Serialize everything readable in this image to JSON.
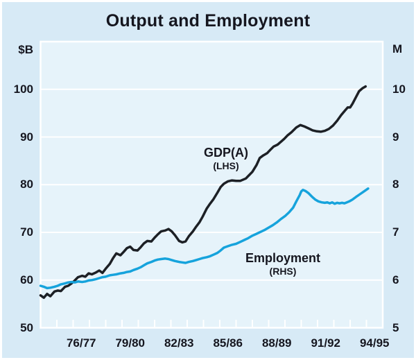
{
  "chart_data": {
    "type": "line",
    "title": "Output and Employment",
    "left_axis": {
      "label": "$B",
      "ticks": [
        50,
        60,
        70,
        80,
        90,
        100
      ],
      "range": [
        50,
        110
      ]
    },
    "right_axis": {
      "label": "M",
      "ticks": [
        5,
        6,
        7,
        8,
        9,
        10
      ],
      "range": [
        5,
        11
      ]
    },
    "x_axis": {
      "years_span": 21,
      "tick_count": 20,
      "labels": [
        "76/77",
        "79/80",
        "82/83",
        "85/86",
        "88/89",
        "91/92",
        "94/95"
      ],
      "label_year_indices": [
        2,
        5,
        8,
        11,
        14,
        17,
        20
      ],
      "grid": false
    },
    "annotations": [
      {
        "text": "GDP(A)",
        "sub": "(LHS)"
      },
      {
        "text": "Employment",
        "sub": "(RHS)"
      }
    ],
    "series": [
      {
        "name": "GDP(A)",
        "axis": "left",
        "color": "#1d2025",
        "points": [
          [
            0,
            56.8
          ],
          [
            0.2,
            56.3
          ],
          [
            0.4,
            57.1
          ],
          [
            0.6,
            56.6
          ],
          [
            0.85,
            57.6
          ],
          [
            1.05,
            57.8
          ],
          [
            1.25,
            57.7
          ],
          [
            1.5,
            58.6
          ],
          [
            1.7,
            58.8
          ],
          [
            1.9,
            59.3
          ],
          [
            2.1,
            59.9
          ],
          [
            2.3,
            60.6
          ],
          [
            2.55,
            60.9
          ],
          [
            2.75,
            60.7
          ],
          [
            2.95,
            61.4
          ],
          [
            3.15,
            61.2
          ],
          [
            3.4,
            61.6
          ],
          [
            3.6,
            62.0
          ],
          [
            3.8,
            61.5
          ],
          [
            4.0,
            62.4
          ],
          [
            4.25,
            63.4
          ],
          [
            4.45,
            64.6
          ],
          [
            4.65,
            65.6
          ],
          [
            4.9,
            65.2
          ],
          [
            5.1,
            65.9
          ],
          [
            5.3,
            66.7
          ],
          [
            5.5,
            67.0
          ],
          [
            5.7,
            66.3
          ],
          [
            5.95,
            66.2
          ],
          [
            6.15,
            66.9
          ],
          [
            6.35,
            67.7
          ],
          [
            6.55,
            68.2
          ],
          [
            6.8,
            68.1
          ],
          [
            7.0,
            68.9
          ],
          [
            7.2,
            69.6
          ],
          [
            7.4,
            70.2
          ],
          [
            7.65,
            70.4
          ],
          [
            7.85,
            70.7
          ],
          [
            8.05,
            70.2
          ],
          [
            8.25,
            69.4
          ],
          [
            8.5,
            68.2
          ],
          [
            8.7,
            67.9
          ],
          [
            8.9,
            68.1
          ],
          [
            9.1,
            69.2
          ],
          [
            9.35,
            70.2
          ],
          [
            9.55,
            71.2
          ],
          [
            9.75,
            72.1
          ],
          [
            9.95,
            73.3
          ],
          [
            10.2,
            75.0
          ],
          [
            10.4,
            76.0
          ],
          [
            10.6,
            76.9
          ],
          [
            10.85,
            78.3
          ],
          [
            11.05,
            79.5
          ],
          [
            11.25,
            80.2
          ],
          [
            11.5,
            80.7
          ],
          [
            11.75,
            80.9
          ],
          [
            12.0,
            80.8
          ],
          [
            12.25,
            80.8
          ],
          [
            12.6,
            81.3
          ],
          [
            12.8,
            82.0
          ],
          [
            13.0,
            82.7
          ],
          [
            13.25,
            84.1
          ],
          [
            13.45,
            85.6
          ],
          [
            13.65,
            86.1
          ],
          [
            13.9,
            86.6
          ],
          [
            14.1,
            87.3
          ],
          [
            14.3,
            88.0
          ],
          [
            14.55,
            88.4
          ],
          [
            14.75,
            89.0
          ],
          [
            14.95,
            89.6
          ],
          [
            15.15,
            90.3
          ],
          [
            15.4,
            91.0
          ],
          [
            15.7,
            92.0
          ],
          [
            15.95,
            92.5
          ],
          [
            16.2,
            92.2
          ],
          [
            16.45,
            91.8
          ],
          [
            16.7,
            91.4
          ],
          [
            16.95,
            91.2
          ],
          [
            17.2,
            91.1
          ],
          [
            17.45,
            91.3
          ],
          [
            17.7,
            91.7
          ],
          [
            17.95,
            92.4
          ],
          [
            18.2,
            93.4
          ],
          [
            18.45,
            94.6
          ],
          [
            18.7,
            95.6
          ],
          [
            18.85,
            96.2
          ],
          [
            19.0,
            96.2
          ],
          [
            19.15,
            97.0
          ],
          [
            19.35,
            98.3
          ],
          [
            19.55,
            99.6
          ],
          [
            19.75,
            100.2
          ],
          [
            19.95,
            100.6
          ]
        ]
      },
      {
        "name": "Employment",
        "axis": "right",
        "color": "#16a3dc",
        "points": [
          [
            0,
            5.88
          ],
          [
            0.2,
            5.86
          ],
          [
            0.4,
            5.83
          ],
          [
            0.6,
            5.84
          ],
          [
            0.85,
            5.86
          ],
          [
            1.05,
            5.88
          ],
          [
            1.25,
            5.91
          ],
          [
            1.5,
            5.93
          ],
          [
            1.7,
            5.95
          ],
          [
            1.9,
            5.96
          ],
          [
            2.1,
            5.95
          ],
          [
            2.3,
            5.97
          ],
          [
            2.55,
            5.96
          ],
          [
            2.75,
            5.97
          ],
          [
            2.95,
            5.99
          ],
          [
            3.15,
            6.0
          ],
          [
            3.4,
            6.02
          ],
          [
            3.6,
            6.04
          ],
          [
            3.8,
            6.06
          ],
          [
            4.0,
            6.07
          ],
          [
            4.25,
            6.1
          ],
          [
            4.45,
            6.11
          ],
          [
            4.65,
            6.12
          ],
          [
            4.9,
            6.14
          ],
          [
            5.1,
            6.15
          ],
          [
            5.3,
            6.17
          ],
          [
            5.5,
            6.18
          ],
          [
            5.7,
            6.21
          ],
          [
            5.95,
            6.24
          ],
          [
            6.15,
            6.27
          ],
          [
            6.35,
            6.31
          ],
          [
            6.55,
            6.35
          ],
          [
            6.8,
            6.38
          ],
          [
            7.0,
            6.41
          ],
          [
            7.2,
            6.43
          ],
          [
            7.4,
            6.44
          ],
          [
            7.65,
            6.45
          ],
          [
            7.85,
            6.44
          ],
          [
            8.05,
            6.42
          ],
          [
            8.25,
            6.4
          ],
          [
            8.5,
            6.38
          ],
          [
            8.7,
            6.37
          ],
          [
            8.9,
            6.36
          ],
          [
            9.1,
            6.38
          ],
          [
            9.35,
            6.4
          ],
          [
            9.55,
            6.42
          ],
          [
            9.75,
            6.44
          ],
          [
            9.95,
            6.46
          ],
          [
            10.2,
            6.48
          ],
          [
            10.4,
            6.5
          ],
          [
            10.6,
            6.53
          ],
          [
            10.85,
            6.57
          ],
          [
            11.05,
            6.62
          ],
          [
            11.25,
            6.68
          ],
          [
            11.5,
            6.71
          ],
          [
            11.75,
            6.74
          ],
          [
            12.0,
            6.76
          ],
          [
            12.25,
            6.8
          ],
          [
            12.5,
            6.84
          ],
          [
            12.75,
            6.88
          ],
          [
            13.0,
            6.93
          ],
          [
            13.25,
            6.97
          ],
          [
            13.5,
            7.01
          ],
          [
            13.75,
            7.05
          ],
          [
            14.0,
            7.1
          ],
          [
            14.25,
            7.15
          ],
          [
            14.5,
            7.21
          ],
          [
            14.75,
            7.28
          ],
          [
            15.0,
            7.34
          ],
          [
            15.25,
            7.42
          ],
          [
            15.5,
            7.52
          ],
          [
            15.7,
            7.65
          ],
          [
            15.9,
            7.78
          ],
          [
            16.0,
            7.86
          ],
          [
            16.1,
            7.89
          ],
          [
            16.25,
            7.87
          ],
          [
            16.45,
            7.82
          ],
          [
            16.65,
            7.75
          ],
          [
            16.85,
            7.69
          ],
          [
            17.05,
            7.65
          ],
          [
            17.25,
            7.63
          ],
          [
            17.45,
            7.62
          ],
          [
            17.6,
            7.63
          ],
          [
            17.75,
            7.61
          ],
          [
            17.9,
            7.63
          ],
          [
            18.05,
            7.6
          ],
          [
            18.2,
            7.62
          ],
          [
            18.35,
            7.61
          ],
          [
            18.5,
            7.62
          ],
          [
            18.65,
            7.61
          ],
          [
            18.8,
            7.63
          ],
          [
            18.95,
            7.65
          ],
          [
            19.15,
            7.69
          ],
          [
            19.35,
            7.74
          ],
          [
            19.6,
            7.8
          ],
          [
            19.85,
            7.86
          ],
          [
            20.1,
            7.92
          ]
        ]
      }
    ],
    "layout_hints": {
      "legend": "inline-annotations",
      "grid_horizontal": true,
      "grid_vertical": false
    }
  },
  "colors": {
    "background": "#d7eaf6",
    "plot_background": "#e6f3fa",
    "grid": "#ffffff",
    "text": "#15161f",
    "gdp_line": "#1d2025",
    "employment_line": "#16a3dc"
  }
}
